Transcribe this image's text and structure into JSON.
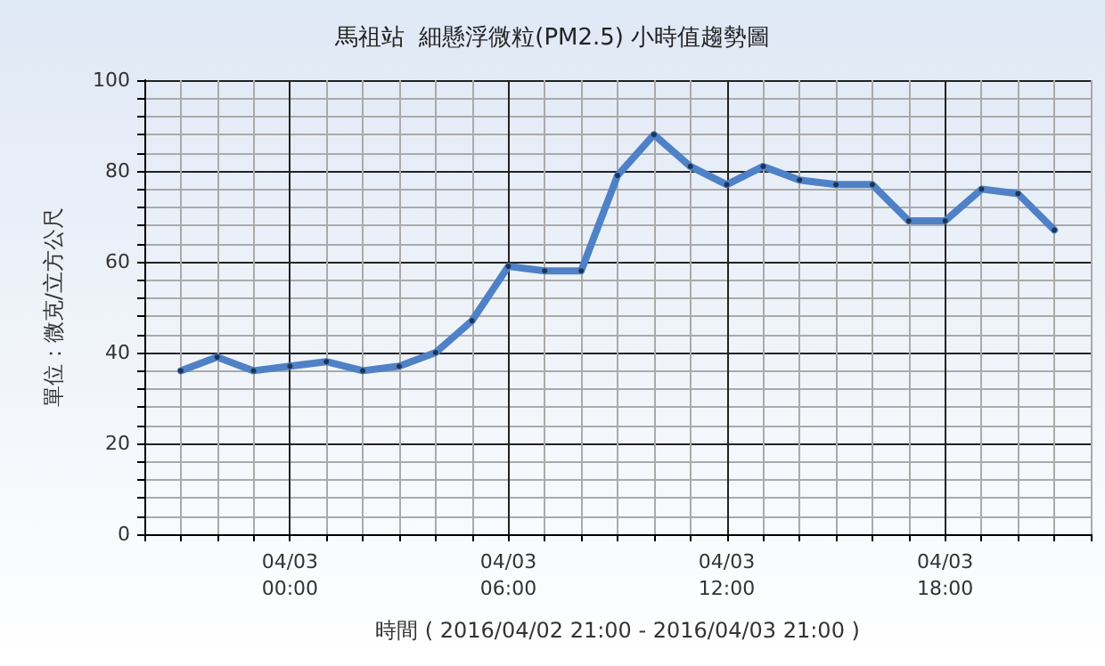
{
  "chart_data": {
    "type": "line",
    "title": "馬祖站  細懸浮微粒(PM2.5) 小時值趨勢圖",
    "xlabel": "時間 ( 2016/04/02 21:00 - 2016/04/03 21:00 )",
    "ylabel": "單位：微克/立方公尺",
    "x": [
      "2016-04-02T21:00",
      "2016-04-02T22:00",
      "2016-04-02T23:00",
      "2016-04-03T00:00",
      "2016-04-03T01:00",
      "2016-04-03T02:00",
      "2016-04-03T03:00",
      "2016-04-03T04:00",
      "2016-04-03T05:00",
      "2016-04-03T06:00",
      "2016-04-03T07:00",
      "2016-04-03T08:00",
      "2016-04-03T09:00",
      "2016-04-03T10:00",
      "2016-04-03T11:00",
      "2016-04-03T12:00",
      "2016-04-03T13:00",
      "2016-04-03T14:00",
      "2016-04-03T15:00",
      "2016-04-03T16:00",
      "2016-04-03T17:00",
      "2016-04-03T18:00",
      "2016-04-03T19:00",
      "2016-04-03T20:00",
      "2016-04-03T21:00"
    ],
    "series": [
      {
        "color": "#4f81c7",
        "values": [
          36,
          39,
          36,
          37,
          38,
          36,
          37,
          40,
          47,
          59,
          58,
          58,
          79,
          88,
          81,
          77,
          81,
          78,
          77,
          77,
          69,
          69,
          76,
          75,
          67
        ]
      }
    ],
    "xlim": [
      "2016-04-02T20:00",
      "2016-04-03T22:00"
    ],
    "xticks": [
      {
        "value": "2016-04-02T20:00",
        "label": null
      },
      {
        "value": "2016-04-02T21:00",
        "label": null
      },
      {
        "value": "2016-04-02T22:00",
        "label": null
      },
      {
        "value": "2016-04-02T23:00",
        "label": null
      },
      {
        "value": "2016-04-03T00:00",
        "label": "04/03\n00:00"
      },
      {
        "value": "2016-04-03T01:00",
        "label": null
      },
      {
        "value": "2016-04-03T02:00",
        "label": null
      },
      {
        "value": "2016-04-03T03:00",
        "label": null
      },
      {
        "value": "2016-04-03T04:00",
        "label": null
      },
      {
        "value": "2016-04-03T05:00",
        "label": null
      },
      {
        "value": "2016-04-03T06:00",
        "label": "04/03\n06:00"
      },
      {
        "value": "2016-04-03T07:00",
        "label": null
      },
      {
        "value": "2016-04-03T08:00",
        "label": null
      },
      {
        "value": "2016-04-03T09:00",
        "label": null
      },
      {
        "value": "2016-04-03T10:00",
        "label": null
      },
      {
        "value": "2016-04-03T11:00",
        "label": null
      },
      {
        "value": "2016-04-03T12:00",
        "label": "04/03\n12:00"
      },
      {
        "value": "2016-04-03T13:00",
        "label": null
      },
      {
        "value": "2016-04-03T14:00",
        "label": null
      },
      {
        "value": "2016-04-03T15:00",
        "label": null
      },
      {
        "value": "2016-04-03T16:00",
        "label": null
      },
      {
        "value": "2016-04-03T17:00",
        "label": null
      },
      {
        "value": "2016-04-03T18:00",
        "label": "04/03\n18:00"
      },
      {
        "value": "2016-04-03T19:00",
        "label": null
      },
      {
        "value": "2016-04-03T20:00",
        "label": null
      },
      {
        "value": "2016-04-03T21:00",
        "label": null
      },
      {
        "value": "2016-04-03T22:00",
        "label": null
      }
    ],
    "ylim": [
      0,
      100
    ],
    "yticks": [
      0,
      {
        "value": 4,
        "label": null
      },
      {
        "value": 8,
        "label": null
      },
      {
        "value": 12,
        "label": null
      },
      {
        "value": 16,
        "label": null
      },
      20,
      {
        "value": 24,
        "label": null
      },
      {
        "value": 28,
        "label": null
      },
      {
        "value": 32,
        "label": null
      },
      {
        "value": 36,
        "label": null
      },
      40,
      {
        "value": 44,
        "label": null
      },
      {
        "value": 48,
        "label": null
      },
      {
        "value": 52,
        "label": null
      },
      {
        "value": 56,
        "label": null
      },
      60,
      {
        "value": 64,
        "label": null
      },
      {
        "value": 68,
        "label": null
      },
      {
        "value": 72,
        "label": null
      },
      {
        "value": 76,
        "label": null
      },
      80,
      {
        "value": 84,
        "label": null
      },
      {
        "value": 88,
        "label": null
      },
      {
        "value": 92,
        "label": null
      },
      {
        "value": 96,
        "label": null
      },
      100
    ],
    "grid": true,
    "marker": "circle",
    "line_style": "solid"
  }
}
